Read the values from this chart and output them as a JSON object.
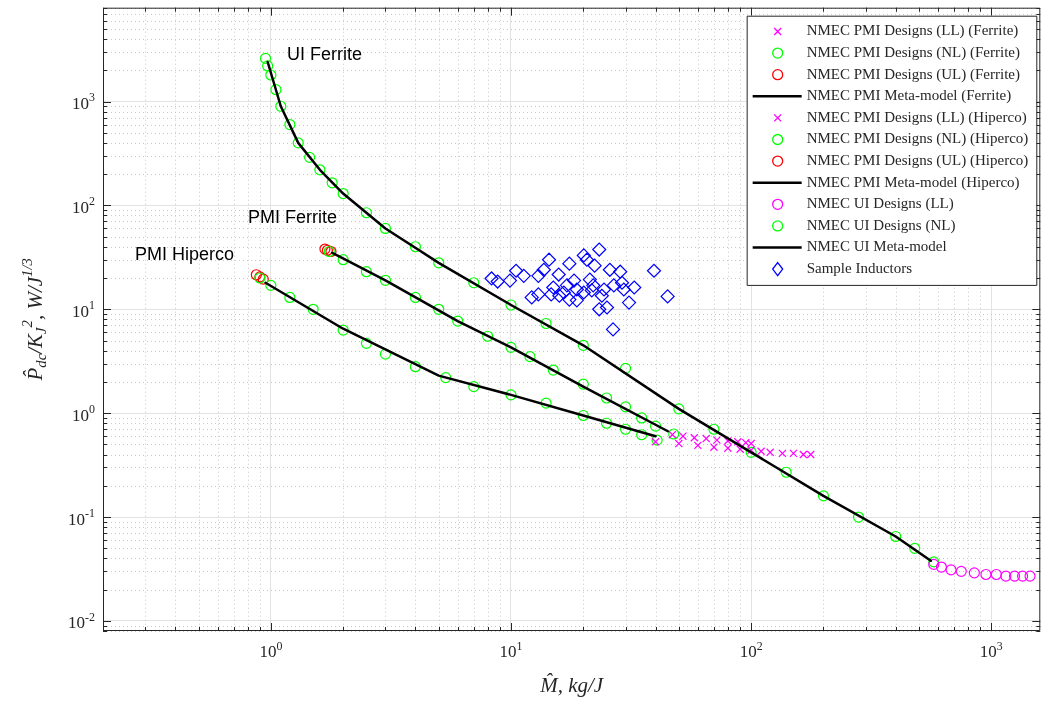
{
  "chart_data": {
    "type": "scatter",
    "log": "xy",
    "grid": true,
    "legend": "top right",
    "xlabel": "M̂, kg/J",
    "ylabel": "P̂$_{dc}$/K$_{J}$$^{2}$, W/J$^{1/3}$",
    "xlim": [
      0.2,
      1600
    ],
    "ylim": [
      0.008,
      8000
    ],
    "xticks": [
      {
        "value": 1,
        "label": "10$^{0}$"
      },
      {
        "value": 10,
        "label": "10$^{1}$"
      },
      {
        "value": 100,
        "label": "10$^{2}$"
      },
      {
        "value": 1000,
        "label": "10$^{3}$"
      }
    ],
    "yticks": [
      {
        "value": 0.01,
        "label": "10$^{-2}$"
      },
      {
        "value": 0.1,
        "label": "10$^{-1}$"
      },
      {
        "value": 1,
        "label": "10$^{0}$"
      },
      {
        "value": 10,
        "label": "10$^{1}$"
      },
      {
        "value": 100,
        "label": "10$^{2}$"
      },
      {
        "value": 1000,
        "label": "10$^{3}$"
      }
    ],
    "annotations": [
      "UI Ferrite",
      "PMI Ferrite",
      "PMI Hiperco"
    ],
    "series": [
      {
        "name": "NMEC PMI Designs (LL) (Ferrite)",
        "type": "scatter",
        "marker": "cross",
        "color": "#ff00ff",
        "x": [
          47,
          52,
          58,
          65,
          72,
          80,
          88,
          95,
          100
        ],
        "values": [
          0.62,
          0.6,
          0.58,
          0.57,
          0.55,
          0.54,
          0.53,
          0.52,
          0.51
        ]
      },
      {
        "name": "NMEC PMI Designs (NL) (Ferrite)",
        "type": "scatter",
        "marker": "circle",
        "color": "#00ff00",
        "x": [
          1.75,
          2,
          2.5,
          3,
          4,
          5,
          6,
          8,
          10,
          12,
          15,
          20,
          25,
          30,
          35,
          40,
          47.6
        ],
        "values": [
          36,
          30,
          23,
          19,
          13,
          10,
          7.7,
          5.5,
          4.3,
          3.5,
          2.6,
          1.9,
          1.4,
          1.15,
          0.9,
          0.75,
          0.63
        ]
      },
      {
        "name": "NMEC PMI Designs (UL) (Ferrite)",
        "type": "scatter",
        "marker": "circle",
        "color": "#ff0000",
        "x": [
          1.68,
          1.72,
          1.78
        ],
        "values": [
          38,
          37,
          36
        ]
      },
      {
        "name": "NMEC PMI Meta-model (Ferrite)",
        "type": "line",
        "marker": "none",
        "color": "#000000",
        "x": [
          1.8,
          3,
          6,
          10,
          20,
          45
        ],
        "values": [
          35,
          19,
          7.7,
          4.3,
          1.8,
          0.67
        ]
      },
      {
        "name": "NMEC PMI Designs (LL) (Hiperco)",
        "type": "scatter",
        "marker": "cross",
        "color": "#ff00ff",
        "x": [
          40,
          50,
          60,
          70,
          80,
          90,
          100,
          110,
          120,
          135,
          150,
          165,
          177
        ],
        "values": [
          0.53,
          0.51,
          0.49,
          0.47,
          0.46,
          0.45,
          0.44,
          0.43,
          0.42,
          0.41,
          0.41,
          0.4,
          0.4
        ]
      },
      {
        "name": "NMEC PMI Designs (NL) (Hiperco)",
        "type": "scatter",
        "marker": "circle",
        "color": "#00ff00",
        "x": [
          0.9,
          1,
          1.2,
          1.5,
          2,
          2.5,
          3,
          4,
          5.35,
          7,
          10,
          14,
          20,
          25,
          30,
          35,
          40.6
        ],
        "values": [
          20,
          17,
          13,
          10,
          6.3,
          4.7,
          3.7,
          2.8,
          2.2,
          1.8,
          1.5,
          1.25,
          0.95,
          0.8,
          0.7,
          0.62,
          0.55
        ]
      },
      {
        "name": "NMEC PMI Designs (UL) (Hiperco)",
        "type": "scatter",
        "marker": "circle",
        "color": "#ff0000",
        "x": [
          0.87,
          0.9,
          0.93
        ],
        "values": [
          21.5,
          20.5,
          19.5
        ]
      },
      {
        "name": "NMEC PMI Meta-model (Hiperco)",
        "type": "line",
        "marker": "none",
        "color": "#000000",
        "x": [
          0.95,
          2,
          5,
          10,
          20,
          40
        ],
        "values": [
          18,
          6.5,
          2.3,
          1.5,
          0.95,
          0.6
        ]
      },
      {
        "name": "NMEC UI Designs (LL)",
        "type": "scatter",
        "marker": "circle",
        "color": "#ff00ff",
        "x": [
          576,
          620,
          680,
          750,
          850,
          950,
          1050,
          1150,
          1250,
          1350,
          1450
        ],
        "values": [
          0.035,
          0.033,
          0.031,
          0.03,
          0.029,
          0.028,
          0.028,
          0.027,
          0.027,
          0.027,
          0.027
        ]
      },
      {
        "name": "NMEC UI Designs (NL)",
        "type": "scatter",
        "marker": "circle",
        "color": "#00ff00",
        "x": [
          0.95,
          0.97,
          1,
          1.05,
          1.1,
          1.2,
          1.3,
          1.45,
          1.6,
          1.8,
          2,
          2.5,
          3,
          4,
          5,
          7,
          10,
          14,
          20,
          30,
          50,
          70,
          100,
          140,
          200,
          280,
          400,
          480,
          576
        ],
        "values": [
          2600,
          2200,
          1800,
          1300,
          900,
          600,
          400,
          290,
          220,
          165,
          130,
          85,
          60,
          40,
          28,
          18,
          11,
          7.3,
          4.5,
          2.7,
          1.1,
          0.7,
          0.42,
          0.27,
          0.16,
          0.1,
          0.065,
          0.05,
          0.037
        ]
      },
      {
        "name": "NMEC UI Meta-model",
        "type": "line",
        "marker": "none",
        "color": "#000000",
        "x": [
          0.97,
          1.1,
          1.3,
          1.6,
          2,
          3,
          5,
          10,
          20,
          50,
          100,
          200,
          400,
          560
        ],
        "values": [
          2400,
          900,
          400,
          220,
          130,
          60,
          28,
          11,
          4.5,
          1.1,
          0.42,
          0.16,
          0.065,
          0.038
        ]
      },
      {
        "name": "Sample Inductors",
        "type": "scatter",
        "marker": "diamond",
        "color": "#0000ff",
        "x": [
          8.3,
          8.8,
          9.9,
          10.5,
          11.3,
          12.2,
          13,
          13,
          14.4,
          13.7,
          15.8,
          15,
          15.9,
          17.5,
          17.1,
          18.3,
          18.8,
          20.1,
          20.7,
          21.3,
          20.1,
          22.3,
          23.3,
          21.7,
          23.3,
          24.4,
          25.8,
          25.1,
          26.8,
          28.5,
          29,
          31,
          32.6,
          26.6,
          39.4,
          44.9,
          14.7,
          16.6,
          18.8,
          22,
          23.9,
          29.5,
          17.5
        ],
        "values": [
          19.8,
          18.5,
          18.9,
          23.5,
          21,
          13,
          21,
          13.9,
          30,
          24,
          21.6,
          16.2,
          13.5,
          27.5,
          17,
          18.9,
          12.2,
          33,
          30,
          19.3,
          14.5,
          26.3,
          37.6,
          15.2,
          10,
          15.5,
          24,
          10.4,
          17,
          23,
          18,
          11.6,
          16.2,
          6.4,
          23.5,
          13.3,
          13.9,
          14.5,
          15.5,
          17,
          13.5,
          15.5,
          12.4
        ]
      }
    ]
  }
}
